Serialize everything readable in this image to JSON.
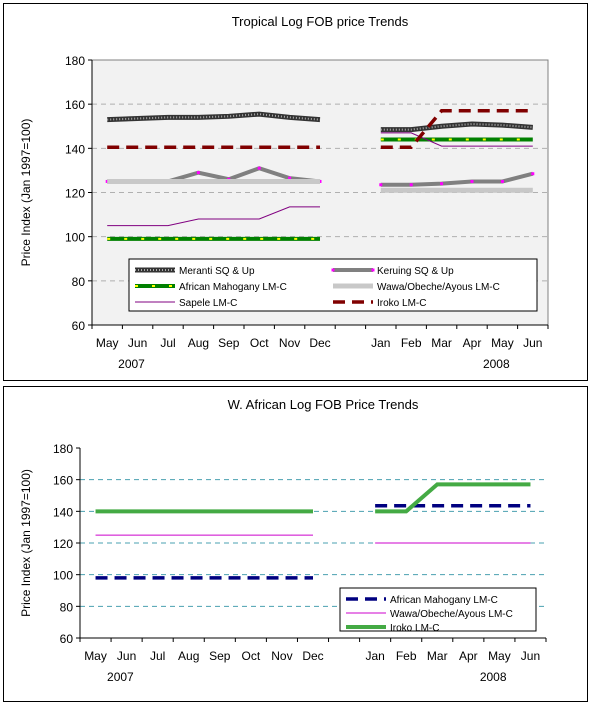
{
  "chart_data": [
    {
      "type": "line",
      "title": "Tropical Log FOB price Trends",
      "ylabel": "Price Index (Jan 1997=100)",
      "ylim": [
        60,
        180
      ],
      "yticks": [
        60,
        80,
        100,
        120,
        140,
        160,
        180
      ],
      "categories": [
        "May",
        "Jun",
        "Jul",
        "Aug",
        "Sep",
        "Oct",
        "Nov",
        "Dec",
        "",
        "Jan",
        "Feb",
        "Mar",
        "Apr",
        "May",
        "Jun"
      ],
      "year_labels": [
        "2007",
        "2008"
      ],
      "grid": "horizontal dashed",
      "legend_position": "inside-bottom",
      "series": [
        {
          "name": "Meranti SQ & Up",
          "values": [
            153,
            153.5,
            154,
            154,
            154.5,
            155.5,
            154,
            153,
            null,
            148.5,
            148.5,
            150,
            151,
            150.5,
            149.5
          ],
          "color": "#404040",
          "style": "bead"
        },
        {
          "name": "Keruing SQ & Up",
          "values": [
            125,
            125,
            125,
            129,
            126,
            131,
            126.5,
            125,
            null,
            123.5,
            123.5,
            124,
            125,
            125,
            128.5
          ],
          "color": "#808080",
          "style": "thick-pink-markers"
        },
        {
          "name": "African Mahogany LM-C",
          "values": [
            99,
            99,
            99,
            99,
            99,
            99,
            99,
            99,
            null,
            144,
            144,
            144,
            144,
            144,
            144
          ],
          "color": "#008000",
          "style": "green-yellow-dash"
        },
        {
          "name": "Wawa/Obeche/Ayous LM-C",
          "values": [
            125,
            125,
            125,
            125,
            125,
            125,
            125,
            125,
            null,
            121,
            121,
            121,
            121,
            121,
            121
          ],
          "color": "#c0c0c0",
          "style": "light-gray-thick"
        },
        {
          "name": "Sapele LM-C",
          "values": [
            105,
            105,
            105,
            108,
            108,
            108,
            113.5,
            113.5,
            null,
            147,
            147,
            141,
            141,
            141,
            141
          ],
          "color": "#800080",
          "style": "thin"
        },
        {
          "name": "Iroko LM-C",
          "values": [
            140.5,
            140.5,
            140.5,
            140.5,
            140.5,
            140.5,
            140.5,
            140.5,
            null,
            140.5,
            140.5,
            157,
            157,
            157,
            157
          ],
          "color": "#800000",
          "style": "dash"
        }
      ]
    },
    {
      "type": "line",
      "title": "W. African Log FOB Price Trends",
      "ylabel": "Price Index (Jan 1997=100)",
      "ylim": [
        60,
        180
      ],
      "yticks": [
        60,
        80,
        100,
        120,
        140,
        160,
        180
      ],
      "categories": [
        "May",
        "Jun",
        "Jul",
        "Aug",
        "Sep",
        "Oct",
        "Nov",
        "Dec",
        "",
        "Jan",
        "Feb",
        "Mar",
        "Apr",
        "May",
        "Jun"
      ],
      "year_labels": [
        "2007",
        "2008"
      ],
      "grid": "horizontal dashed",
      "legend_position": "inside-bottom-right",
      "series": [
        {
          "name": "African Mahogany LM-C",
          "values": [
            98,
            98,
            98,
            98,
            98,
            98,
            98,
            98,
            null,
            143.5,
            143.5,
            143.5,
            143.5,
            143.5,
            143.5
          ],
          "color": "#000080",
          "style": "dash"
        },
        {
          "name": "Wawa/Obeche/Ayous LM-C",
          "values": [
            125,
            125,
            125,
            125,
            125,
            125,
            125,
            125,
            null,
            120,
            120,
            120,
            120,
            120,
            120
          ],
          "color": "#cc00cc",
          "style": "thin"
        },
        {
          "name": "Iroko LM-C",
          "values": [
            140,
            140,
            140,
            140,
            140,
            140,
            140,
            140,
            null,
            140,
            140,
            157,
            157,
            157,
            157
          ],
          "color": "#44aa44",
          "style": "thick"
        }
      ]
    }
  ]
}
